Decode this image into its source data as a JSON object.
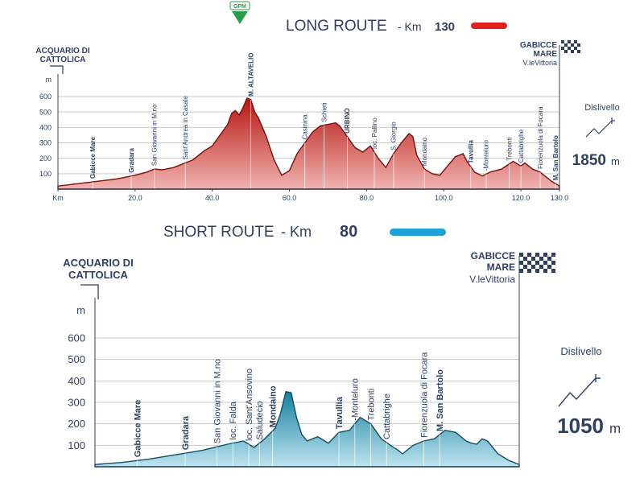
{
  "long": {
    "title": "LONG ROUTE",
    "km_label": "- Km",
    "km": "130",
    "accent": "#e0231d",
    "start": [
      "ACQUARIO DI",
      "CATTOLICA"
    ],
    "finish": [
      "GABICCE",
      "MARE"
    ],
    "finish_sub": "V.leVittoria",
    "gpm": "GPM",
    "dislivello_label": "Dislivello",
    "dislivello_value": "1850",
    "dislivello_unit": "m"
  },
  "short": {
    "title": "SHORT ROUTE",
    "km_label": "- Km",
    "km": "80",
    "accent": "#1ea3d8",
    "start": [
      "ACQUARIO DI",
      "CATTOLICA"
    ],
    "finish": [
      "GABICCE",
      "MARE"
    ],
    "finish_sub": "V.leVittoria",
    "dislivello_label": "Dislivello",
    "dislivello_value": "1050",
    "dislivello_unit": "m"
  },
  "chart_data": [
    {
      "type": "area",
      "title": "LONG ROUTE",
      "ylabel": "m",
      "xlabel": "Km",
      "xlim": [
        0,
        130
      ],
      "ylim": [
        0,
        600
      ],
      "x_ticks": [
        "Km",
        "20.0",
        "40.0",
        "60.0",
        "80.0",
        "100.0",
        "120.0",
        "130.0"
      ],
      "x_tick_values": [
        0,
        20,
        40,
        60,
        80,
        100,
        120,
        130
      ],
      "y_ticks": [
        100,
        200,
        300,
        400,
        500,
        600
      ],
      "grid": true,
      "color": "#c8201b",
      "series": [
        {
          "x": [
            0,
            5,
            10,
            15,
            20,
            23,
            25,
            27,
            30,
            35,
            38,
            40,
            42,
            44,
            45,
            46,
            47,
            48,
            49,
            50,
            51,
            52,
            54,
            56,
            58,
            60,
            62,
            64,
            66,
            68,
            70,
            72,
            73,
            75,
            77,
            79,
            81,
            83,
            85,
            87,
            89,
            91,
            92,
            93,
            95,
            97,
            99,
            101,
            103,
            105,
            106,
            108,
            110,
            112,
            115,
            118,
            120,
            121,
            123,
            125,
            126,
            128,
            130
          ],
          "y": [
            20,
            35,
            50,
            65,
            90,
            110,
            130,
            125,
            140,
            190,
            250,
            280,
            350,
            420,
            490,
            510,
            480,
            530,
            590,
            580,
            500,
            460,
            340,
            190,
            90,
            120,
            230,
            300,
            370,
            410,
            420,
            430,
            410,
            340,
            270,
            240,
            280,
            200,
            140,
            230,
            300,
            360,
            340,
            220,
            130,
            100,
            90,
            150,
            210,
            230,
            180,
            110,
            85,
            110,
            130,
            180,
            150,
            170,
            130,
            110,
            90,
            50,
            20
          ]
        }
      ],
      "waypoints": [
        {
          "km": 9,
          "name": "Gabicce Mare",
          "bold": true
        },
        {
          "km": 19,
          "name": "Gradara",
          "bold": true
        },
        {
          "km": 25,
          "name": "San Giovanni in M.no",
          "bold": false
        },
        {
          "km": 33,
          "name": "Sant'Andrea in Casale",
          "bold": false
        },
        {
          "km": 50,
          "name": "M. ALTAVELIO",
          "bold": true
        },
        {
          "km": 64,
          "name": "Casinina",
          "bold": false
        },
        {
          "km": 69,
          "name": "Schieti",
          "bold": false
        },
        {
          "km": 75,
          "name": "URBINO",
          "bold": true
        },
        {
          "km": 82,
          "name": "loc. Pallino",
          "bold": false
        },
        {
          "km": 87,
          "name": "S. Giorgio",
          "bold": false
        },
        {
          "km": 95,
          "name": "Mondaino",
          "bold": false
        },
        {
          "km": 107,
          "name": "Tavullia",
          "bold": true
        },
        {
          "km": 111,
          "name": "-Monteluro",
          "bold": false
        },
        {
          "km": 117,
          "name": "Trebonti",
          "bold": false
        },
        {
          "km": 120,
          "name": "Cattabrighe",
          "bold": false
        },
        {
          "km": 125,
          "name": "Fiorenzuola di Focara",
          "bold": false
        },
        {
          "km": 129,
          "name": "M. San Bartolo",
          "bold": true
        }
      ]
    },
    {
      "type": "area",
      "title": "SHORT ROUTE",
      "ylabel": "m",
      "xlim": [
        0,
        80
      ],
      "ylim": [
        0,
        600
      ],
      "y_ticks": [
        100,
        200,
        300,
        400,
        500,
        600
      ],
      "grid": true,
      "color": "#2a8fb3",
      "series": [
        {
          "x": [
            0,
            5,
            10,
            15,
            20,
            25,
            28,
            30,
            32,
            34,
            35,
            36,
            37,
            38,
            39,
            40,
            42,
            44,
            46,
            48,
            50,
            52,
            54,
            56,
            57,
            58,
            60,
            62,
            64,
            66,
            68,
            70,
            71,
            72,
            73,
            74,
            75,
            76,
            78,
            80
          ],
          "y": [
            10,
            20,
            35,
            55,
            75,
            105,
            120,
            90,
            130,
            180,
            250,
            350,
            345,
            230,
            150,
            120,
            140,
            110,
            160,
            170,
            230,
            200,
            130,
            95,
            80,
            60,
            100,
            120,
            130,
            170,
            160,
            120,
            110,
            105,
            130,
            120,
            90,
            60,
            30,
            10
          ]
        }
      ],
      "waypoints": [
        {
          "km": 8,
          "name": "Gabicce Mare",
          "bold": true
        },
        {
          "km": 17,
          "name": "Gradara",
          "bold": true
        },
        {
          "km": 23,
          "name": "San Giovanni in M.no",
          "bold": false
        },
        {
          "km": 26,
          "name": "loc. Falda",
          "bold": false
        },
        {
          "km": 29,
          "name": "loc. Sant'Ansovino",
          "bold": false
        },
        {
          "km": 31,
          "name": "Saludecio",
          "bold": false
        },
        {
          "km": 33.5,
          "name": "Mondaino",
          "bold": true
        },
        {
          "km": 46,
          "name": "Tavullia",
          "bold": true
        },
        {
          "km": 49,
          "name": "-Monteluro",
          "bold": false
        },
        {
          "km": 52,
          "name": "Trebonti",
          "bold": false
        },
        {
          "km": 55,
          "name": "Cattabrighe",
          "bold": false
        },
        {
          "km": 62,
          "name": "Fiorenzuola di Focara",
          "bold": false
        },
        {
          "km": 65,
          "name": "M. San Bartolo",
          "bold": true
        }
      ]
    }
  ]
}
